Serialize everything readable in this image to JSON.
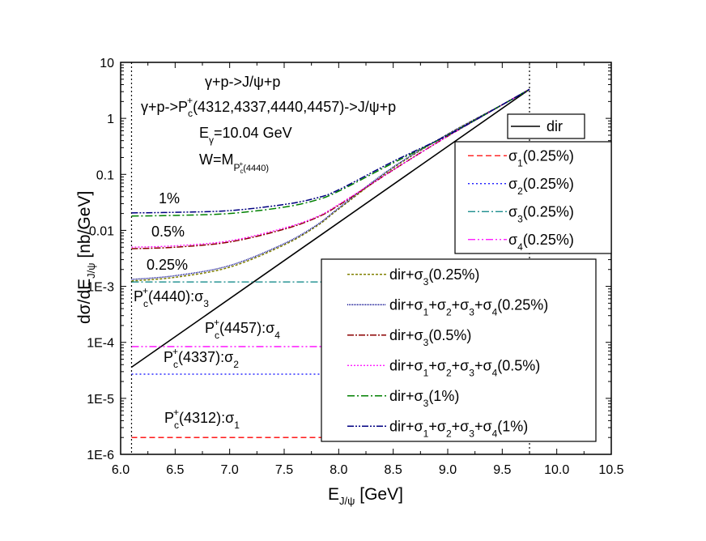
{
  "chart_data": {
    "type": "line",
    "yscale": "log",
    "xlabel": {
      "main": "E",
      "sub": "J/ψ",
      "tail": " [GeV]"
    },
    "ylabel": {
      "main": "dσ/dE",
      "sub": "J/ψ",
      "tail": " [nb/GeV]"
    },
    "xlim": [
      6.0,
      10.5
    ],
    "ylim": [
      1e-06,
      10
    ],
    "xticks": [
      {
        "v": 6.0,
        "label": "6.0"
      },
      {
        "v": 6.5,
        "label": "6.5"
      },
      {
        "v": 7.0,
        "label": "7.0"
      },
      {
        "v": 7.5,
        "label": "7.5"
      },
      {
        "v": 8.0,
        "label": "8.0"
      },
      {
        "v": 8.5,
        "label": "8.5"
      },
      {
        "v": 9.0,
        "label": "9.0"
      },
      {
        "v": 9.5,
        "label": "9.5"
      },
      {
        "v": 10.0,
        "label": "10.0"
      },
      {
        "v": 10.5,
        "label": "10.5"
      }
    ],
    "yticks": [
      {
        "v": 10,
        "label": "10"
      },
      {
        "v": 1,
        "label": "1"
      },
      {
        "v": 0.1,
        "label": "0.1"
      },
      {
        "v": 0.01,
        "label": "0.01"
      },
      {
        "v": 0.001,
        "label": "1E-3"
      },
      {
        "v": 0.0001,
        "label": "1E-4"
      },
      {
        "v": 1e-05,
        "label": "1E-5"
      },
      {
        "v": 1e-06,
        "label": "1E-6"
      }
    ],
    "vlines": [
      6.1,
      9.75
    ],
    "annotations": {
      "reaction1": "γ+p->J/ψ+p",
      "reaction2_a": "γ+p->P",
      "reaction2_sub": "c",
      "reaction2_sup": "+",
      "reaction2_b": "(4312,4337,4440,4457)->J/ψ+p",
      "energy_a": "E",
      "energy_sub": "γ",
      "energy_b": "=10.04 GeV",
      "w_a": "W=M",
      "w_sub": "P",
      "w_subsub": "c",
      "w_subsup": "+",
      "w_tail": "(4440)",
      "pct1": "1%",
      "pct05": "0.5%",
      "pct025": "0.25%",
      "pc4440": {
        "a": "P",
        "sub": "c",
        "sup": "+",
        "b": "(4440):σ",
        "idx": "3"
      },
      "pc4457": {
        "a": "P",
        "sub": "c",
        "sup": "+",
        "b": "(4457):σ",
        "idx": "4"
      },
      "pc4337": {
        "a": "P",
        "sub": "c",
        "sup": "+",
        "b": "(4337):σ",
        "idx": "2"
      },
      "pc4312": {
        "a": "P",
        "sub": "c",
        "sup": "+",
        "b": "(4312):σ",
        "idx": "1"
      }
    },
    "series": [
      {
        "name": "dir",
        "legend": [
          {
            "t": "dir"
          }
        ],
        "color": "#000000",
        "dash": "",
        "width": 1.6,
        "x": [
          6.1,
          9.75
        ],
        "y": [
          3.6e-05,
          3.3
        ]
      },
      {
        "name": "sigma1",
        "legend": [
          {
            "t": "σ"
          },
          {
            "t": "1",
            "sub": true
          },
          {
            "t": "(0.25%)"
          }
        ],
        "color": "#ff0000",
        "dash": "7,4",
        "width": 1.3,
        "x": [
          6.1,
          8.2
        ],
        "y": [
          2e-06,
          2e-06
        ]
      },
      {
        "name": "sigma2",
        "legend": [
          {
            "t": "σ"
          },
          {
            "t": "2",
            "sub": true
          },
          {
            "t": "(0.25%)"
          }
        ],
        "color": "#0000ff",
        "dash": "2,3",
        "width": 1.3,
        "x": [
          6.1,
          8.2
        ],
        "y": [
          2.7e-05,
          2.7e-05
        ]
      },
      {
        "name": "sigma3",
        "legend": [
          {
            "t": "σ"
          },
          {
            "t": "3",
            "sub": true
          },
          {
            "t": "(0.25%)"
          }
        ],
        "color": "#008080",
        "dash": "9,3,2,3",
        "width": 1.3,
        "x": [
          6.1,
          8.2
        ],
        "y": [
          0.0012,
          0.0012
        ]
      },
      {
        "name": "sigma4",
        "legend": [
          {
            "t": "σ"
          },
          {
            "t": "4",
            "sub": true
          },
          {
            "t": "(0.25%)"
          }
        ],
        "color": "#ff00ff",
        "dash": "9,3,2,3,2,3",
        "width": 1.3,
        "x": [
          6.1,
          8.2
        ],
        "y": [
          8.4e-05,
          8.4e-05
        ]
      },
      {
        "name": "dir+s3-025",
        "legend": [
          {
            "t": "dir+σ"
          },
          {
            "t": "3",
            "sub": true
          },
          {
            "t": "(0.25%)"
          }
        ],
        "color": "#808000",
        "dash": "3,2",
        "width": 1.5,
        "x": [
          6.1,
          6.5,
          7.0,
          7.5,
          7.8,
          8.0,
          8.5,
          9.0,
          9.5,
          9.75
        ],
        "y": [
          0.00125,
          0.00145,
          0.0022,
          0.0055,
          0.012,
          0.024,
          0.13,
          0.52,
          1.75,
          3.3
        ]
      },
      {
        "name": "dir+all-025",
        "legend": [
          {
            "t": "dir+σ"
          },
          {
            "t": "1",
            "sub": true
          },
          {
            "t": "+σ"
          },
          {
            "t": "2",
            "sub": true
          },
          {
            "t": "+σ"
          },
          {
            "t": "3",
            "sub": true
          },
          {
            "t": "+σ"
          },
          {
            "t": "4",
            "sub": true
          },
          {
            "t": "(0.25%)"
          }
        ],
        "color": "#00008b",
        "dash": "1,1",
        "width": 1.5,
        "x": [
          6.1,
          6.5,
          7.0,
          7.5,
          7.8,
          8.0,
          8.5,
          9.0,
          9.5,
          9.75
        ],
        "y": [
          0.00133,
          0.00155,
          0.00235,
          0.0058,
          0.0125,
          0.025,
          0.135,
          0.52,
          1.75,
          3.3
        ]
      },
      {
        "name": "dir+s3-05",
        "legend": [
          {
            "t": "dir+σ"
          },
          {
            "t": "3",
            "sub": true
          },
          {
            "t": "(0.5%)"
          }
        ],
        "color": "#8b0000",
        "dash": "8,2,2,2",
        "width": 1.5,
        "x": [
          6.1,
          6.5,
          7.0,
          7.5,
          7.8,
          8.0,
          8.5,
          9.0,
          9.5,
          9.75
        ],
        "y": [
          0.0047,
          0.005,
          0.0062,
          0.0105,
          0.017,
          0.028,
          0.12,
          0.48,
          1.75,
          3.3
        ]
      },
      {
        "name": "dir+all-05",
        "legend": [
          {
            "t": "dir+σ"
          },
          {
            "t": "1",
            "sub": true
          },
          {
            "t": "+σ"
          },
          {
            "t": "2",
            "sub": true
          },
          {
            "t": "+σ"
          },
          {
            "t": "3",
            "sub": true
          },
          {
            "t": "+σ"
          },
          {
            "t": "4",
            "sub": true
          },
          {
            "t": "(0.5%)"
          }
        ],
        "color": "#ff00ff",
        "dash": "2,2",
        "width": 1.3,
        "x": [
          6.1,
          6.5,
          7.0,
          7.5,
          7.8,
          8.0,
          8.5,
          9.0,
          9.5,
          9.75
        ],
        "y": [
          0.005,
          0.0053,
          0.0065,
          0.011,
          0.0175,
          0.029,
          0.12,
          0.48,
          1.75,
          3.3
        ]
      },
      {
        "name": "dir+s3-1",
        "legend": [
          {
            "t": "dir+σ"
          },
          {
            "t": "3",
            "sub": true
          },
          {
            "t": "(1%)"
          }
        ],
        "color": "#008000",
        "dash": "9,3,2,3",
        "width": 1.5,
        "x": [
          6.1,
          6.5,
          7.0,
          7.5,
          7.8,
          8.0,
          8.5,
          9.0,
          9.5,
          9.75
        ],
        "y": [
          0.018,
          0.0185,
          0.02,
          0.026,
          0.035,
          0.05,
          0.16,
          0.5,
          1.75,
          3.3
        ]
      },
      {
        "name": "dir+all-1",
        "legend": [
          {
            "t": "dir+σ"
          },
          {
            "t": "1",
            "sub": true
          },
          {
            "t": "+σ"
          },
          {
            "t": "2",
            "sub": true
          },
          {
            "t": "+σ"
          },
          {
            "t": "3",
            "sub": true
          },
          {
            "t": "+σ"
          },
          {
            "t": "4",
            "sub": true
          },
          {
            "t": "(1%)"
          }
        ],
        "color": "#000080",
        "dash": "8,2,2,2,2,2",
        "width": 1.5,
        "x": [
          6.1,
          6.5,
          7.0,
          7.5,
          7.8,
          8.0,
          8.5,
          9.0,
          9.5,
          9.75
        ],
        "y": [
          0.0205,
          0.021,
          0.0225,
          0.029,
          0.038,
          0.053,
          0.17,
          0.5,
          1.75,
          3.3
        ]
      }
    ],
    "legends": [
      {
        "name": "legend-dir",
        "series": [
          "dir"
        ],
        "position": "top-right"
      },
      {
        "name": "legend-sigma",
        "series": [
          "sigma1",
          "sigma2",
          "sigma3",
          "sigma4"
        ],
        "position": "right"
      },
      {
        "name": "legend-combined",
        "series": [
          "dir+s3-025",
          "dir+all-025",
          "dir+s3-05",
          "dir+all-05",
          "dir+s3-1",
          "dir+all-1"
        ],
        "position": "bottom-right"
      }
    ]
  }
}
